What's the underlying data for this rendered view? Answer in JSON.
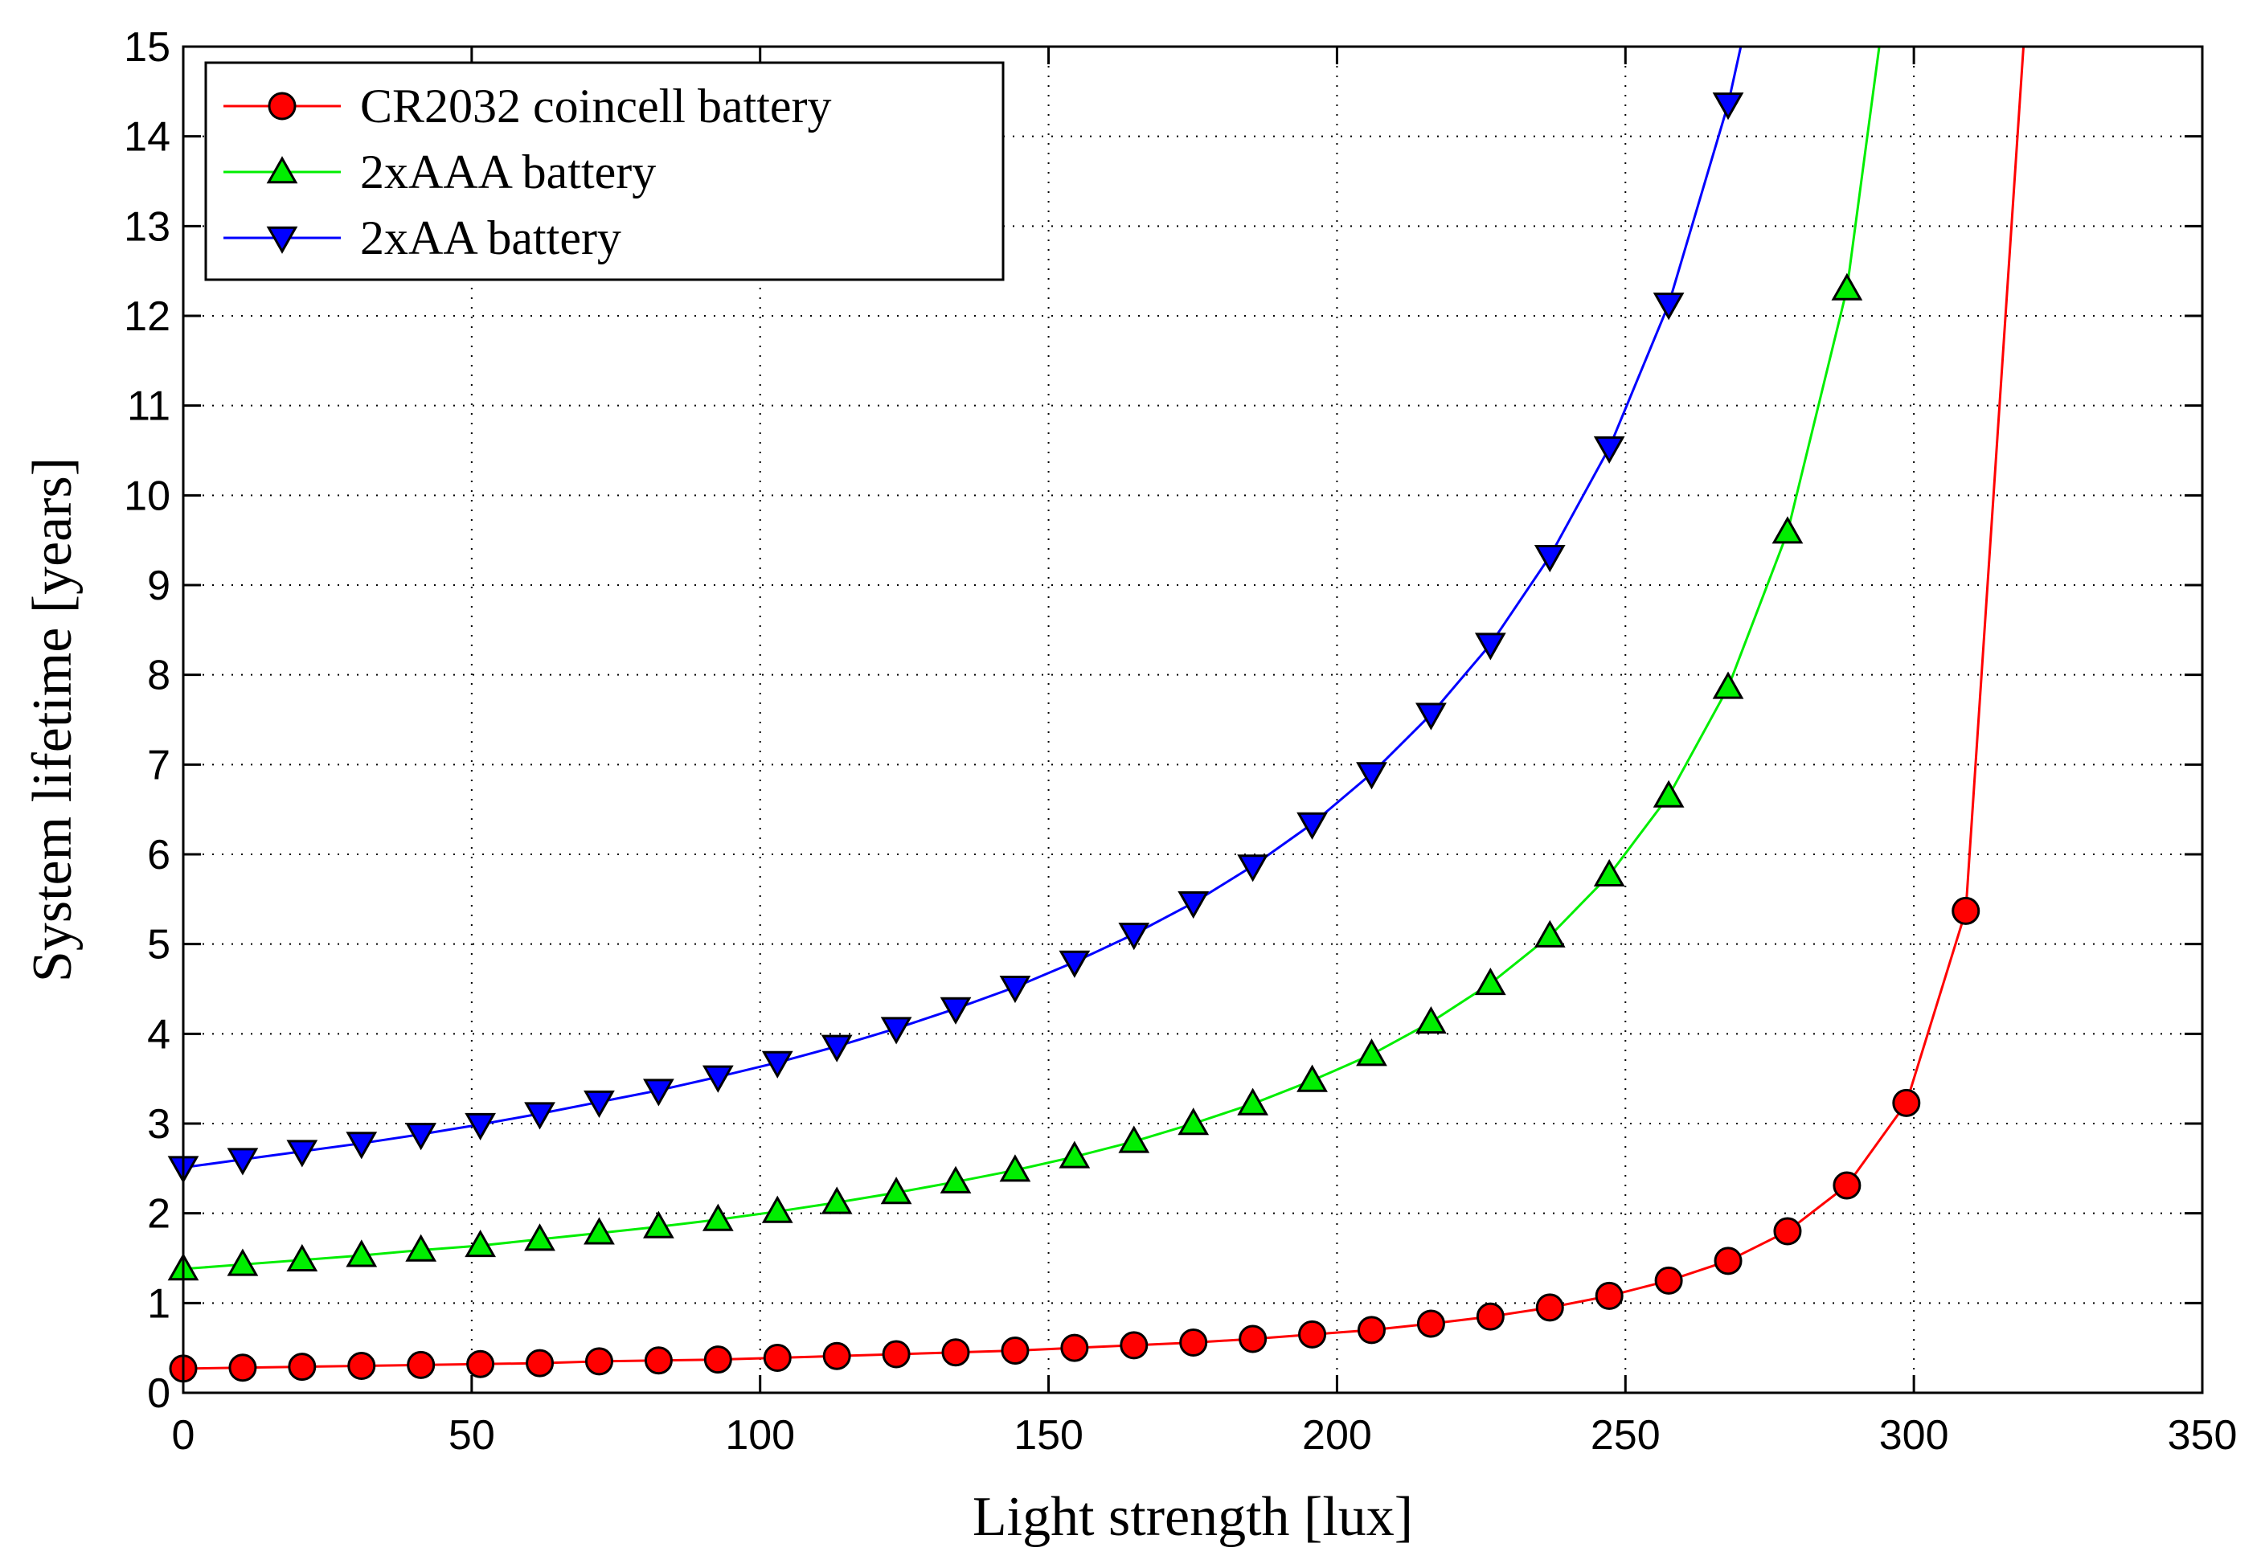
{
  "chart_data": {
    "type": "line",
    "title": "",
    "xlabel": "Light strength  [lux]",
    "ylabel": "System lifetime [years]",
    "xlim": [
      0,
      350
    ],
    "ylim": [
      0,
      15
    ],
    "xticks": [
      0,
      50,
      100,
      150,
      200,
      250,
      300,
      350
    ],
    "yticks": [
      0,
      1,
      2,
      3,
      4,
      5,
      6,
      7,
      8,
      9,
      10,
      11,
      12,
      13,
      14,
      15
    ],
    "grid": true,
    "legend_position": "top-left",
    "series": [
      {
        "name": "CR2032 coincell battery",
        "color": "#ff0000",
        "marker_fill": "#ff0000",
        "marker": "circle",
        "x": [
          0,
          10.3,
          20.6,
          30.9,
          41.2,
          51.5,
          61.8,
          72.1,
          82.4,
          92.7,
          103,
          113.3,
          123.6,
          133.9,
          144.2,
          154.5,
          164.8,
          175.1,
          185.4,
          195.7,
          206,
          216.3,
          226.6,
          236.9,
          247.2,
          257.5,
          267.8,
          278.1,
          288.4,
          298.7,
          309,
          319
        ],
        "y": [
          0.27,
          0.28,
          0.29,
          0.3,
          0.31,
          0.32,
          0.33,
          0.35,
          0.36,
          0.37,
          0.39,
          0.41,
          0.43,
          0.45,
          0.47,
          0.5,
          0.53,
          0.56,
          0.6,
          0.65,
          0.7,
          0.77,
          0.85,
          0.95,
          1.08,
          1.25,
          1.47,
          1.8,
          2.31,
          3.23,
          5.37,
          15
        ]
      },
      {
        "name": "2xAAA battery",
        "color": "#00ee00",
        "marker_fill": "#00ee00",
        "marker": "triangle-up",
        "x": [
          0,
          10.3,
          20.6,
          30.9,
          41.2,
          51.5,
          61.8,
          72.1,
          82.4,
          92.7,
          103,
          113.3,
          123.6,
          133.9,
          144.2,
          154.5,
          164.8,
          175.1,
          185.4,
          195.7,
          206,
          216.3,
          226.6,
          236.9,
          247.2,
          257.5,
          267.8,
          278.1,
          288.4,
          294
        ],
        "y": [
          1.38,
          1.43,
          1.48,
          1.53,
          1.59,
          1.64,
          1.71,
          1.78,
          1.85,
          1.93,
          2.02,
          2.12,
          2.23,
          2.35,
          2.48,
          2.63,
          2.8,
          3.0,
          3.22,
          3.48,
          3.77,
          4.13,
          4.56,
          5.09,
          5.77,
          6.65,
          7.86,
          9.59,
          12.3,
          15
        ]
      },
      {
        "name": "2xAA battery",
        "color": "#0000ff",
        "marker_fill": "#0000ff",
        "marker": "triangle-down",
        "x": [
          0,
          10.3,
          20.6,
          30.9,
          41.2,
          51.5,
          61.8,
          72.1,
          82.4,
          92.7,
          103,
          113.3,
          123.6,
          133.9,
          144.2,
          154.5,
          164.8,
          175.1,
          185.4,
          195.7,
          206,
          216.3,
          226.6,
          236.9,
          247.2,
          257.5,
          267.8,
          270
        ],
        "y": [
          2.51,
          2.6,
          2.69,
          2.78,
          2.88,
          2.99,
          3.11,
          3.24,
          3.37,
          3.52,
          3.68,
          3.86,
          4.06,
          4.28,
          4.52,
          4.8,
          5.11,
          5.46,
          5.87,
          6.34,
          6.9,
          7.56,
          8.34,
          9.32,
          10.53,
          12.13,
          14.36,
          15
        ]
      }
    ]
  }
}
